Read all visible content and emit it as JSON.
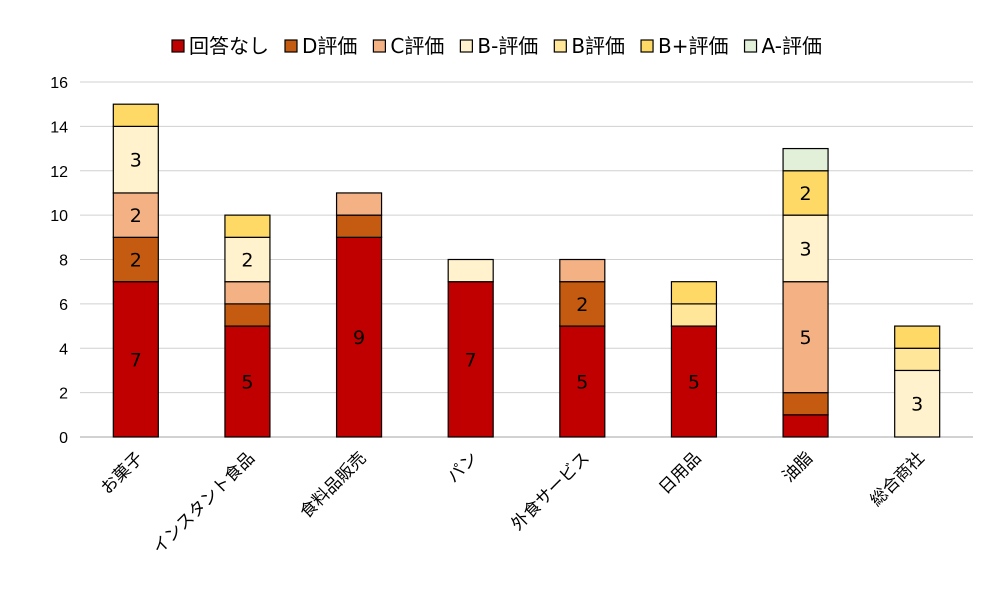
{
  "chart_data": {
    "type": "bar",
    "stacked": true,
    "categories": [
      "お菓子",
      "インスタント食品",
      "食料品販売",
      "パン",
      "外食サービス",
      "日用品",
      "油脂",
      "総合商社"
    ],
    "series": [
      {
        "name": "回答なし",
        "color": "#c00000",
        "values": [
          7,
          5,
          9,
          7,
          5,
          5,
          1,
          0
        ]
      },
      {
        "name": "D評価",
        "color": "#c55a11",
        "values": [
          2,
          1,
          1,
          0,
          2,
          0,
          1,
          0
        ]
      },
      {
        "name": "C評価",
        "color": "#f4b183",
        "values": [
          2,
          1,
          1,
          0,
          1,
          0,
          5,
          0
        ]
      },
      {
        "name": "B-評価",
        "color": "#fff2cc",
        "values": [
          3,
          2,
          0,
          1,
          0,
          0,
          3,
          3
        ]
      },
      {
        "name": "B評価",
        "color": "#ffe699",
        "values": [
          0,
          0,
          0,
          0,
          0,
          1,
          0,
          1
        ]
      },
      {
        "name": "B+評価",
        "color": "#ffd966",
        "values": [
          1,
          1,
          0,
          0,
          0,
          1,
          2,
          1
        ]
      },
      {
        "name": "A-評価",
        "color": "#e2f0d9",
        "values": [
          0,
          0,
          0,
          0,
          0,
          0,
          1,
          0
        ]
      }
    ],
    "data_labels": [
      {
        "category": 0,
        "series": 0,
        "text": "7"
      },
      {
        "category": 0,
        "series": 1,
        "text": "2"
      },
      {
        "category": 0,
        "series": 2,
        "text": "2"
      },
      {
        "category": 0,
        "series": 3,
        "text": "3"
      },
      {
        "category": 1,
        "series": 0,
        "text": "5"
      },
      {
        "category": 1,
        "series": 3,
        "text": "2"
      },
      {
        "category": 2,
        "series": 0,
        "text": "9"
      },
      {
        "category": 3,
        "series": 0,
        "text": "7"
      },
      {
        "category": 4,
        "series": 0,
        "text": "5"
      },
      {
        "category": 4,
        "series": 1,
        "text": "2"
      },
      {
        "category": 5,
        "series": 0,
        "text": "5"
      },
      {
        "category": 6,
        "series": 2,
        "text": "5"
      },
      {
        "category": 6,
        "series": 3,
        "text": "3"
      },
      {
        "category": 6,
        "series": 5,
        "text": "2"
      },
      {
        "category": 7,
        "series": 3,
        "text": "3"
      }
    ],
    "ylim": [
      0,
      16
    ],
    "yticks": [
      0,
      2,
      4,
      6,
      8,
      10,
      12,
      14,
      16
    ],
    "grid": true,
    "legend_position": "top",
    "title": "",
    "xlabel": "",
    "ylabel": ""
  }
}
